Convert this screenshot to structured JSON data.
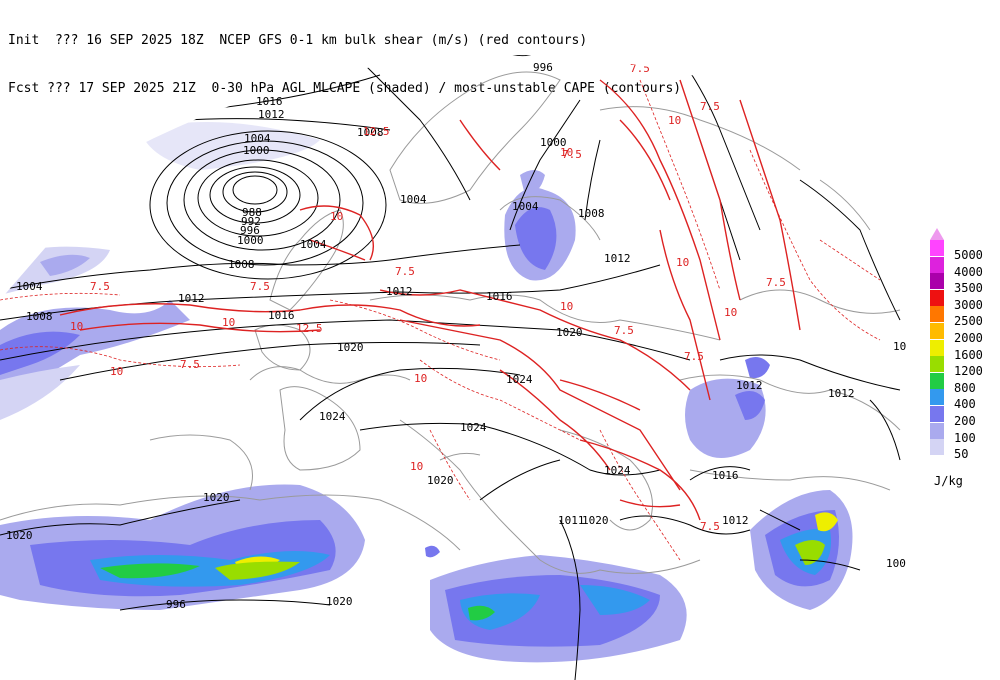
{
  "header": {
    "init_line": "Init  ??? 16 SEP 2025 18Z  NCEP GFS 0-1 km bulk shear (m/s) (red contours)",
    "fcst_line": "Fcst ??? 17 SEP 2025 21Z  0-30 hPa AGL MLCAPE (shaded) / most-unstable CAPE (contours)"
  },
  "legend": {
    "units": "J/kg",
    "levels": [
      {
        "label": "5000",
        "color": "#ff44ff"
      },
      {
        "label": "4000",
        "color": "#dd22dd"
      },
      {
        "label": "3500",
        "color": "#aa00aa"
      },
      {
        "label": "3000",
        "color": "#ee1111"
      },
      {
        "label": "2500",
        "color": "#ff7700"
      },
      {
        "label": "2000",
        "color": "#ffbb00"
      },
      {
        "label": "1600",
        "color": "#eeee00"
      },
      {
        "label": "1200",
        "color": "#99dd00"
      },
      {
        "label": "800",
        "color": "#22cc44"
      },
      {
        "label": "400",
        "color": "#3399ee"
      },
      {
        "label": "200",
        "color": "#7777ee"
      },
      {
        "label": "100",
        "color": "#aaaaee"
      },
      {
        "label": "50",
        "color": "#d4d4f4"
      }
    ],
    "top_arrow_color": "#ee99ee"
  },
  "pressure_labels": [
    "1020",
    "996",
    "1016",
    "1012",
    "1008",
    "1004",
    "1000",
    "988",
    "992",
    "996",
    "1000",
    "1004",
    "1008",
    "1004",
    "1008",
    "1012",
    "1016",
    "1020",
    "1024",
    "1024",
    "1020",
    "1024",
    "1020",
    "1020",
    "1020",
    "1012",
    "1016",
    "1012",
    "1024",
    "1020",
    "1011",
    "1012",
    "1020",
    "1016",
    "1000",
    "1004",
    "1008",
    "1012",
    "1004",
    "996",
    "10",
    "100",
    "1012"
  ],
  "shear_labels": [
    "7.5",
    "10",
    "7.5",
    "10",
    "7.5",
    "10",
    "12.5",
    "10",
    "7.5",
    "10",
    "10",
    "7.5",
    "12.5",
    "7.5",
    "10",
    "7.5",
    "10",
    "7.5",
    "10",
    "7.5",
    "10",
    "7.5",
    "10",
    "7.5"
  ],
  "colors": {
    "isobar": "#000000",
    "shear": "#dd2222",
    "coast": "#9a9a9a",
    "background": "#ffffff"
  }
}
